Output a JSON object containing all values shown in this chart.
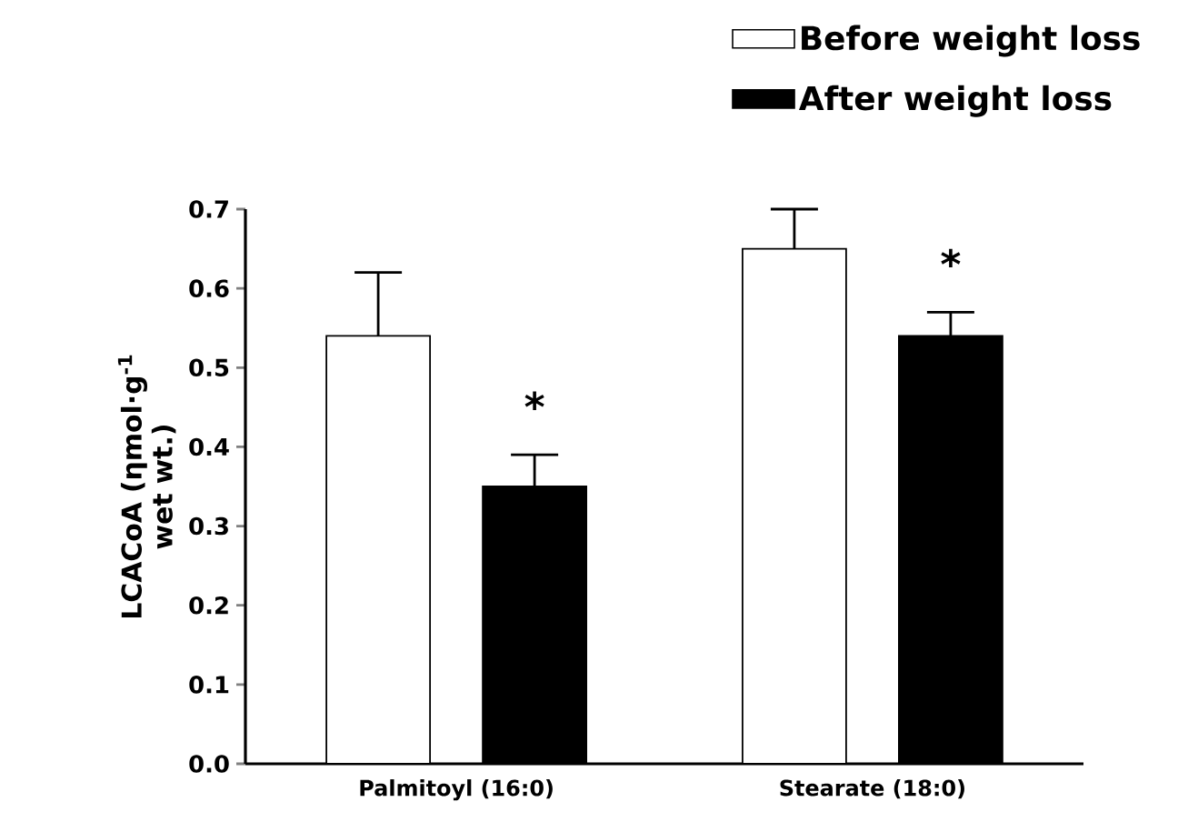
{
  "chart_data": {
    "type": "bar",
    "ylabel": "LCACoA (ηmol·g$^{-1}$ wet wt.)",
    "categories": [
      "Palmitoyl (16:0)",
      "Stearate (18:0)"
    ],
    "series": [
      {
        "name": "Before weight loss",
        "color": "#ffffff",
        "values": [
          0.54,
          0.65
        ],
        "errors": [
          [
            0.54,
            0.62
          ],
          [
            0.65,
            0.7
          ]
        ]
      },
      {
        "name": "After weight loss",
        "color": "#000000",
        "values": [
          0.35,
          0.54
        ],
        "errors": [
          [
            0.35,
            0.39
          ],
          [
            0.54,
            0.57
          ]
        ]
      }
    ],
    "ylim": [
      0,
      0.7
    ],
    "yticks": [
      {
        "value": 0,
        "label": "0.0"
      },
      0.1,
      0.2,
      0.3,
      0.4,
      0.5,
      0.6,
      0.7
    ],
    "legend": "top right",
    "annotations": [
      "*",
      "*"
    ]
  }
}
